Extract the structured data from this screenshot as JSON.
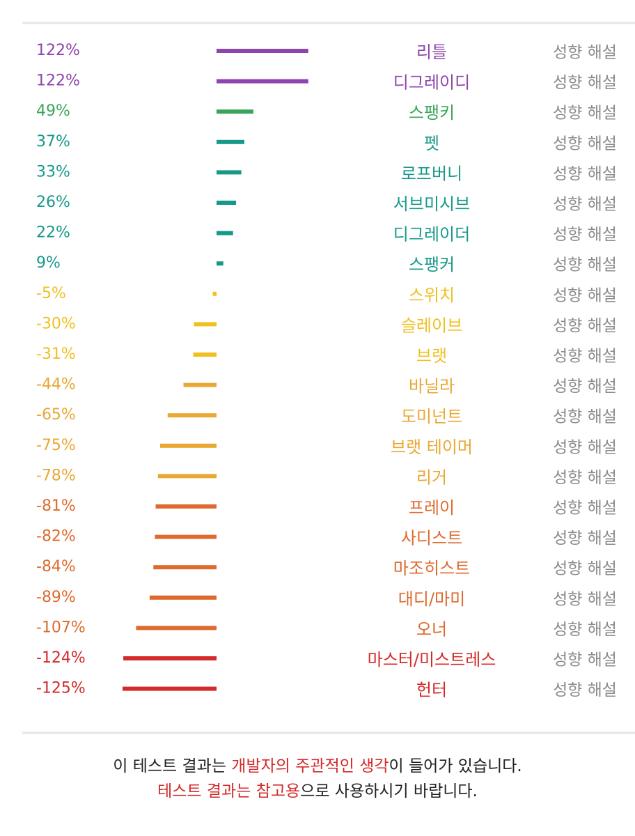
{
  "chart_data": {
    "type": "bar",
    "categories": [
      "리틀",
      "디그레이디",
      "스팽키",
      "펫",
      "로프버니",
      "서브미시브",
      "디그레이더",
      "스팽커",
      "스위치",
      "슬레이브",
      "브랫",
      "바닐라",
      "도미넌트",
      "브랫 테이머",
      "리거",
      "프레이",
      "사디스트",
      "마조히스트",
      "대디/마미",
      "오너",
      "마스터/미스트레스",
      "헌터"
    ],
    "values": [
      122,
      122,
      49,
      37,
      33,
      26,
      22,
      9,
      -5,
      -30,
      -31,
      -44,
      -65,
      -75,
      -78,
      -81,
      -82,
      -84,
      -89,
      -107,
      -124,
      -125
    ],
    "value_labels": [
      "122%",
      "122%",
      "49%",
      "37%",
      "33%",
      "26%",
      "22%",
      "9%",
      "-5%",
      "-30%",
      "-31%",
      "-44%",
      "-65%",
      "-75%",
      "-78%",
      "-81%",
      "-82%",
      "-84%",
      "-89%",
      "-107%",
      "-124%",
      "-125%"
    ],
    "colors": [
      "#8e44ad",
      "#8e44ad",
      "#3aa55a",
      "#17998a",
      "#17998a",
      "#17998a",
      "#17998a",
      "#17998a",
      "#f0c020",
      "#f0c020",
      "#f0c020",
      "#e8a833",
      "#e8a833",
      "#e8a833",
      "#e8a833",
      "#de6a2e",
      "#de6a2e",
      "#de6a2e",
      "#de6a2e",
      "#de6a2e",
      "#d42a2a",
      "#d42a2a"
    ],
    "detail_link": "성향 해설"
  },
  "footer": {
    "lines": [
      [
        {
          "text": "이 테스트 결과는 ",
          "color": "#222222"
        },
        {
          "text": "개발자의 주관적인 생각",
          "color": "#d42a2a"
        },
        {
          "text": "이 들어가 있습니다.",
          "color": "#222222"
        }
      ],
      [
        {
          "text": "테스트 결과는 참고용",
          "color": "#d42a2a"
        },
        {
          "text": "으로 사용하시기 바랍니다.",
          "color": "#222222"
        }
      ]
    ]
  }
}
